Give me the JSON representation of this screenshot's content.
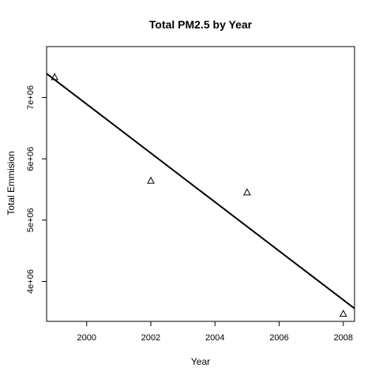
{
  "chart_data": {
    "type": "scatter",
    "title": "Total PM2.5 by Year",
    "xlabel": "Year",
    "ylabel": "Total Emmision",
    "x_ticks": [
      2000,
      2002,
      2004,
      2006,
      2008
    ],
    "x_tick_labels": [
      "2000",
      "2002",
      "2004",
      "2006",
      "2008"
    ],
    "y_ticks": [
      4000000,
      5000000,
      6000000,
      7000000
    ],
    "y_tick_labels": [
      "4e+06",
      "5e+06",
      "6e+06",
      "7e+06"
    ],
    "xlim": [
      1998.75,
      2008.35
    ],
    "ylim": [
      3350000,
      7830000
    ],
    "grid": false,
    "marker": "open-triangle",
    "points": [
      {
        "x": 1999,
        "y": 7330000
      },
      {
        "x": 2002,
        "y": 5640000
      },
      {
        "x": 2005,
        "y": 5450000
      },
      {
        "x": 2008,
        "y": 3470000
      }
    ],
    "trend_line": {
      "x": [
        1998.75,
        2008.35
      ],
      "y": [
        7390000,
        3560000
      ]
    }
  }
}
